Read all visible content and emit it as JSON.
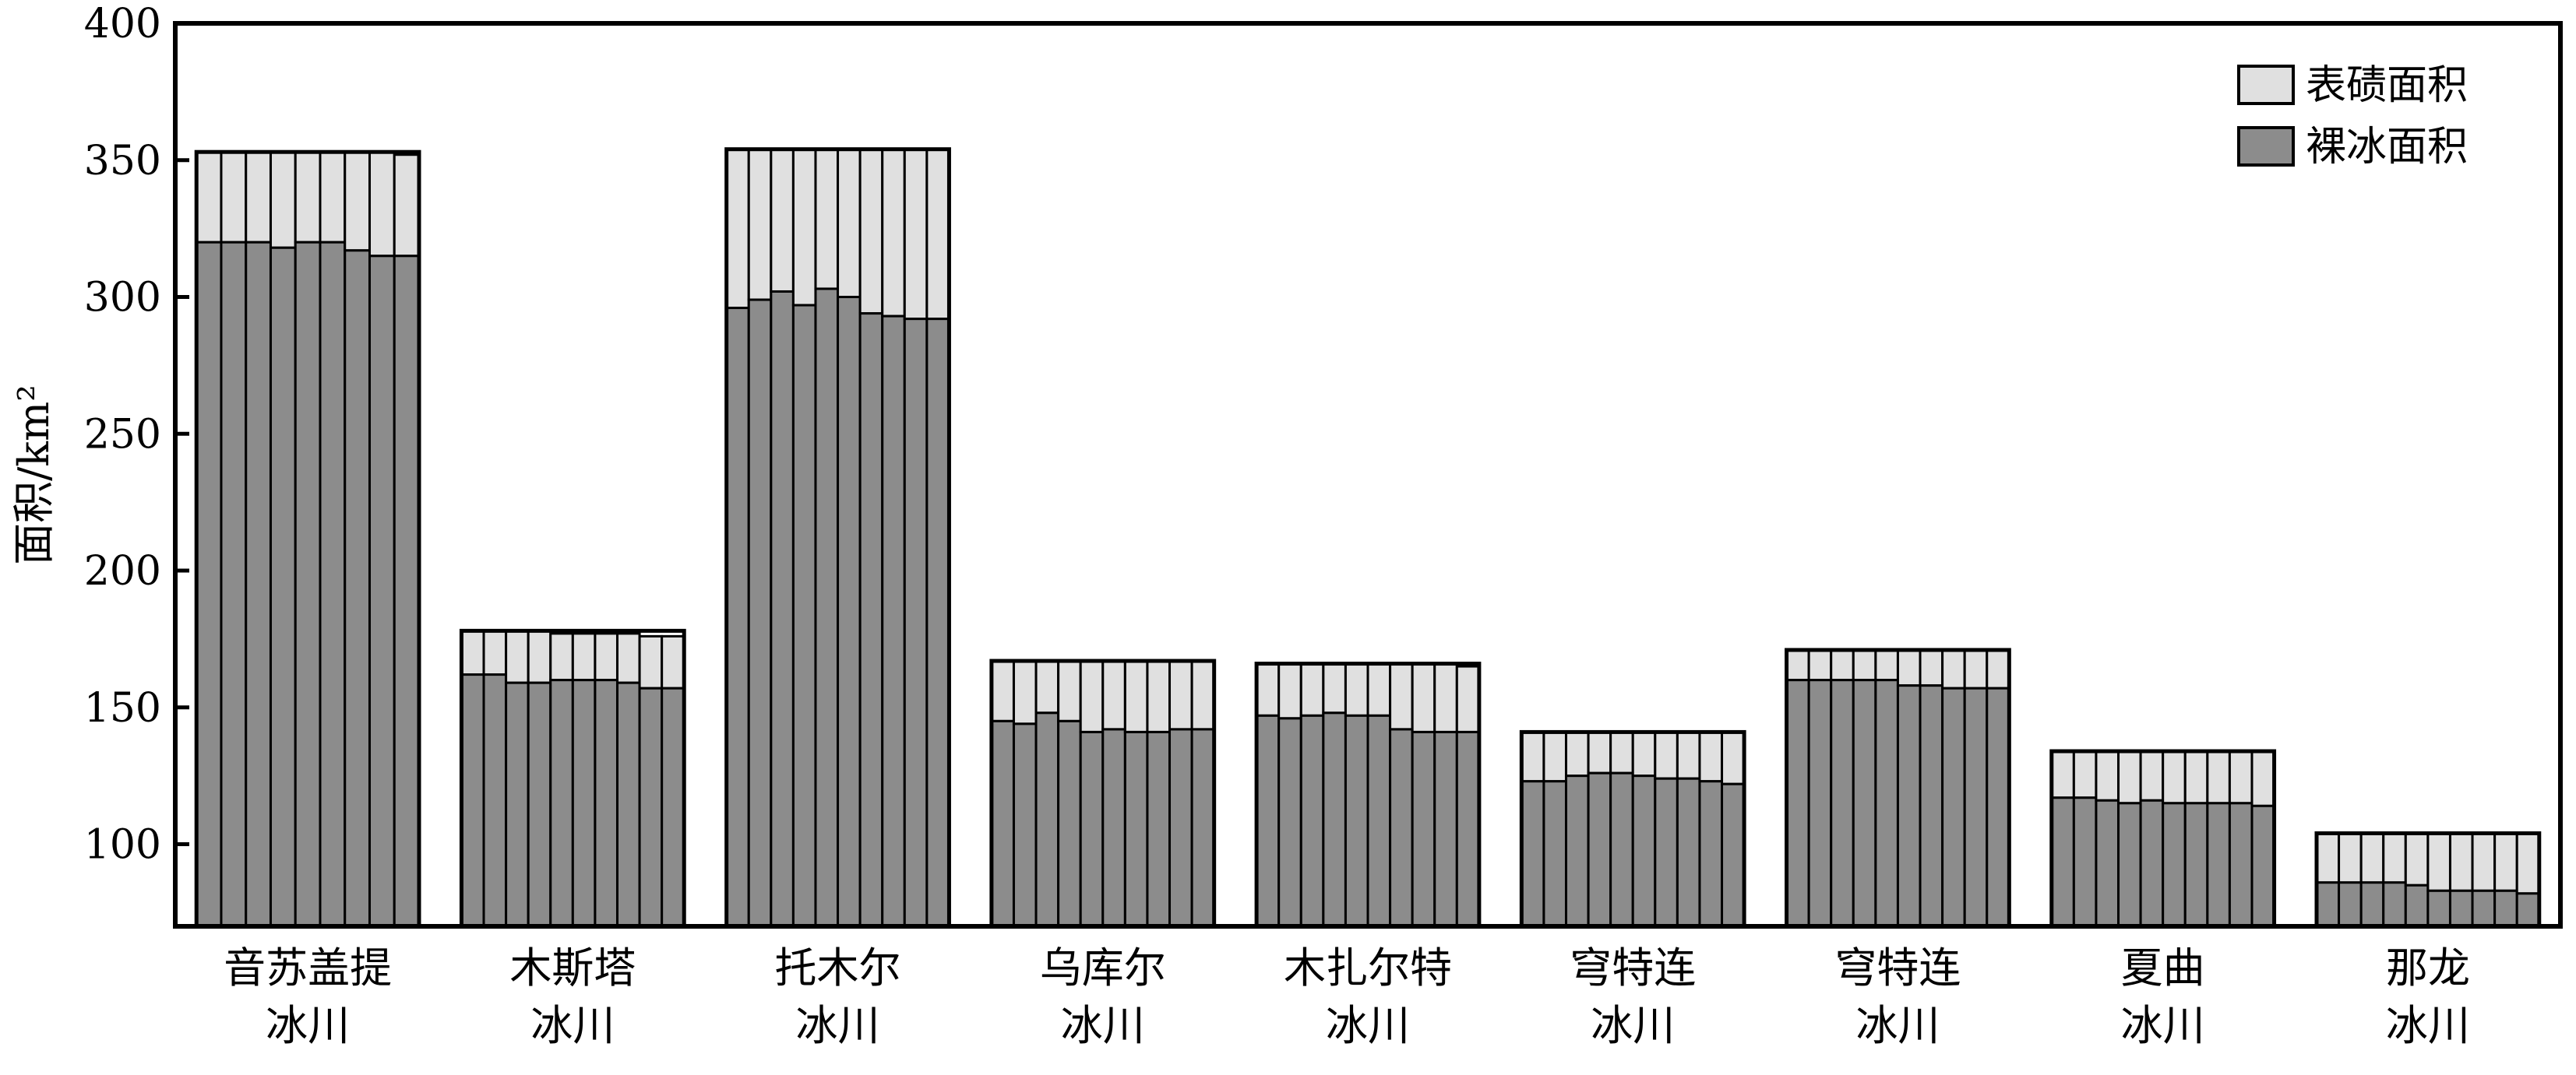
{
  "chart_data": {
    "type": "bar",
    "stacked": true,
    "title": "",
    "xlabel": "",
    "ylabel": "面积/km²",
    "ylim": [
      70,
      400
    ],
    "yticks": [
      100,
      150,
      200,
      250,
      300,
      350,
      400
    ],
    "grid": false,
    "legend_position": "top-right",
    "groups": [
      {
        "label_line1": "音苏盖提",
        "label_line2": "冰川",
        "bare": [
          320,
          320,
          320,
          318,
          320,
          320,
          317,
          315,
          315
        ],
        "total": [
          353,
          353,
          353,
          353,
          353,
          353,
          353,
          353,
          352
        ]
      },
      {
        "label_line1": "木斯塔",
        "label_line2": "冰川",
        "bare": [
          162,
          162,
          159,
          159,
          160,
          160,
          160,
          159,
          157,
          157
        ],
        "total": [
          178,
          178,
          178,
          178,
          177,
          177,
          177,
          177,
          176,
          176
        ]
      },
      {
        "label_line1": "托木尔",
        "label_line2": "冰川",
        "bare": [
          296,
          299,
          302,
          297,
          303,
          300,
          294,
          293,
          292,
          292
        ],
        "total": [
          354,
          354,
          354,
          354,
          354,
          354,
          354,
          354,
          354,
          354
        ]
      },
      {
        "label_line1": "乌库尔",
        "label_line2": "冰川",
        "bare": [
          145,
          144,
          148,
          145,
          141,
          142,
          141,
          141,
          142,
          142
        ],
        "total": [
          167,
          167,
          167,
          167,
          167,
          167,
          167,
          167,
          167,
          167
        ]
      },
      {
        "label_line1": "木扎尔特",
        "label_line2": "冰川",
        "bare": [
          147,
          146,
          147,
          148,
          147,
          147,
          142,
          141,
          141,
          141
        ],
        "total": [
          166,
          166,
          166,
          166,
          166,
          166,
          166,
          166,
          166,
          165
        ]
      },
      {
        "label_line1": "穹特连",
        "label_line2": "冰川",
        "bare": [
          123,
          123,
          125,
          126,
          126,
          125,
          124,
          124,
          123,
          122
        ],
        "total": [
          141,
          141,
          141,
          141,
          141,
          141,
          141,
          141,
          141,
          141
        ]
      },
      {
        "label_line1": "穹特连",
        "label_line2": "冰川",
        "bare": [
          160,
          160,
          160,
          160,
          160,
          158,
          158,
          157,
          157,
          157
        ],
        "total": [
          171,
          171,
          171,
          171,
          171,
          171,
          171,
          171,
          171,
          171
        ]
      },
      {
        "label_line1": "夏曲",
        "label_line2": "冰川",
        "bare": [
          117,
          117,
          116,
          115,
          116,
          115,
          115,
          115,
          115,
          114
        ],
        "total": [
          134,
          134,
          134,
          134,
          134,
          134,
          134,
          134,
          134,
          134
        ]
      },
      {
        "label_line1": "那龙",
        "label_line2": "冰川",
        "bare": [
          86,
          86,
          86,
          86,
          85,
          83,
          83,
          83,
          83,
          82
        ],
        "total": [
          104,
          104,
          104,
          104,
          104,
          104,
          104,
          104,
          104,
          104
        ]
      }
    ],
    "series": [
      {
        "name": "表碛面积",
        "color": "#e0e0e0"
      },
      {
        "name": "裸冰面积",
        "color": "#8c8c8c"
      }
    ]
  }
}
